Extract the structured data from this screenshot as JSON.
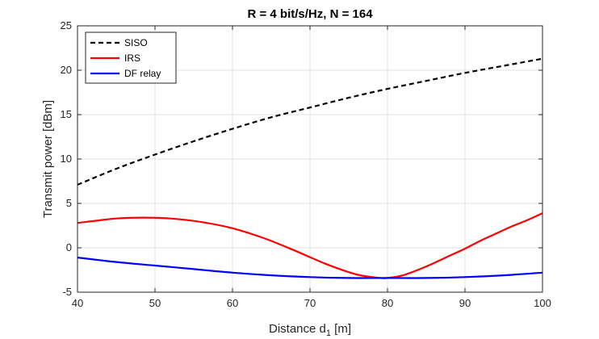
{
  "chart_data": {
    "type": "line",
    "title": "R = 4 bit/s/Hz, N = 164",
    "xlabel_main": "Distance d",
    "xlabel_sub": "1",
    "xlabel_unit": " [m]",
    "ylabel": "Transmit power [dBm]",
    "xlim": [
      40,
      100
    ],
    "ylim": [
      -5,
      25
    ],
    "xticks": [
      40,
      50,
      60,
      70,
      80,
      90,
      100
    ],
    "yticks": [
      -5,
      0,
      5,
      10,
      15,
      20,
      25
    ],
    "grid": true,
    "legend_position": "top-left",
    "series": [
      {
        "name": "SISO",
        "color": "#000000",
        "dash": "dashed",
        "x": [
          40,
          45,
          50,
          55,
          60,
          65,
          70,
          75,
          80,
          85,
          90,
          95,
          100
        ],
        "y": [
          7.1,
          8.9,
          10.5,
          12.0,
          13.4,
          14.7,
          15.8,
          16.9,
          17.9,
          18.8,
          19.7,
          20.5,
          21.3
        ]
      },
      {
        "name": "IRS",
        "color": "#ff0000",
        "dash": "solid",
        "x": [
          40,
          45,
          48.5,
          52,
          56,
          60,
          64,
          68,
          72,
          76,
          79,
          80,
          82,
          85,
          88,
          90,
          92,
          94,
          96,
          98,
          100
        ],
        "y": [
          2.8,
          3.3,
          3.4,
          3.3,
          2.9,
          2.2,
          1.1,
          -0.3,
          -1.8,
          -3.0,
          -3.4,
          -3.4,
          -3.1,
          -2.1,
          -0.9,
          -0.1,
          0.8,
          1.6,
          2.4,
          3.1,
          3.9
        ]
      },
      {
        "name": "DF relay",
        "color": "#0000ff",
        "dash": "solid",
        "x": [
          40,
          45,
          50,
          55,
          60,
          65,
          70,
          75,
          80,
          85,
          90,
          95,
          100
        ],
        "y": [
          -1.1,
          -1.6,
          -2.0,
          -2.4,
          -2.8,
          -3.1,
          -3.3,
          -3.4,
          -3.4,
          -3.4,
          -3.3,
          -3.1,
          -2.8
        ]
      }
    ]
  }
}
